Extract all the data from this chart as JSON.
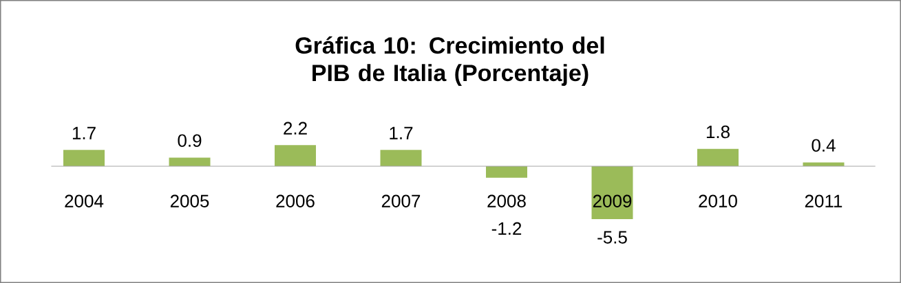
{
  "chart_data": {
    "type": "bar",
    "title": "Gráfica 10: Crecimiento del PIB de Italia (Porcentaje)",
    "categories": [
      "2004",
      "2005",
      "2006",
      "2007",
      "2008",
      "2009",
      "2010",
      "2011"
    ],
    "values": [
      1.7,
      0.9,
      2.2,
      1.7,
      -1.2,
      -5.5,
      1.8,
      0.4
    ],
    "color": "#9bbb59",
    "relative": false,
    "data_labels": true
  }
}
